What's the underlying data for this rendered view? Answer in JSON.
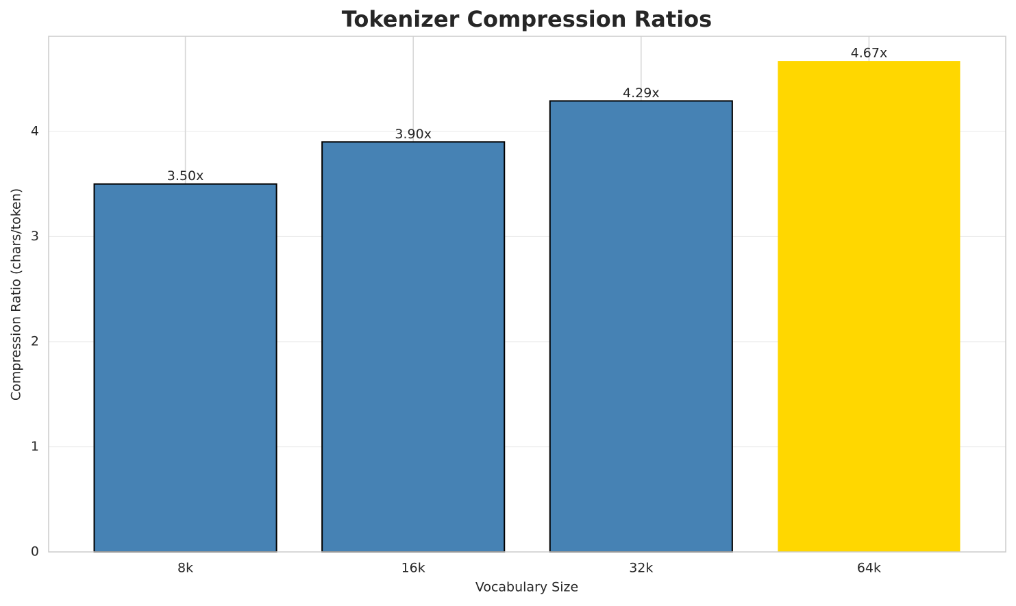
{
  "chart_data": {
    "type": "bar",
    "title": "Tokenizer Compression Ratios",
    "x_label": "Vocabulary Size",
    "y_label": "Compression Ratio (chars/token)",
    "categories": [
      "8k",
      "16k",
      "32k",
      "64k"
    ],
    "values": [
      3.5,
      3.9,
      4.29,
      4.67
    ],
    "value_labels": [
      "3.50x",
      "3.90x",
      "4.29x",
      "4.67x"
    ],
    "colors": [
      "#4682b4",
      "#4682b4",
      "#4682b4",
      "#ffd700"
    ],
    "edgecolors": [
      "#000000",
      "#000000",
      "#000000",
      "none"
    ],
    "ylim": [
      0,
      4.905
    ],
    "yticks": [
      0,
      1,
      2,
      3,
      4
    ],
    "grid": true
  }
}
